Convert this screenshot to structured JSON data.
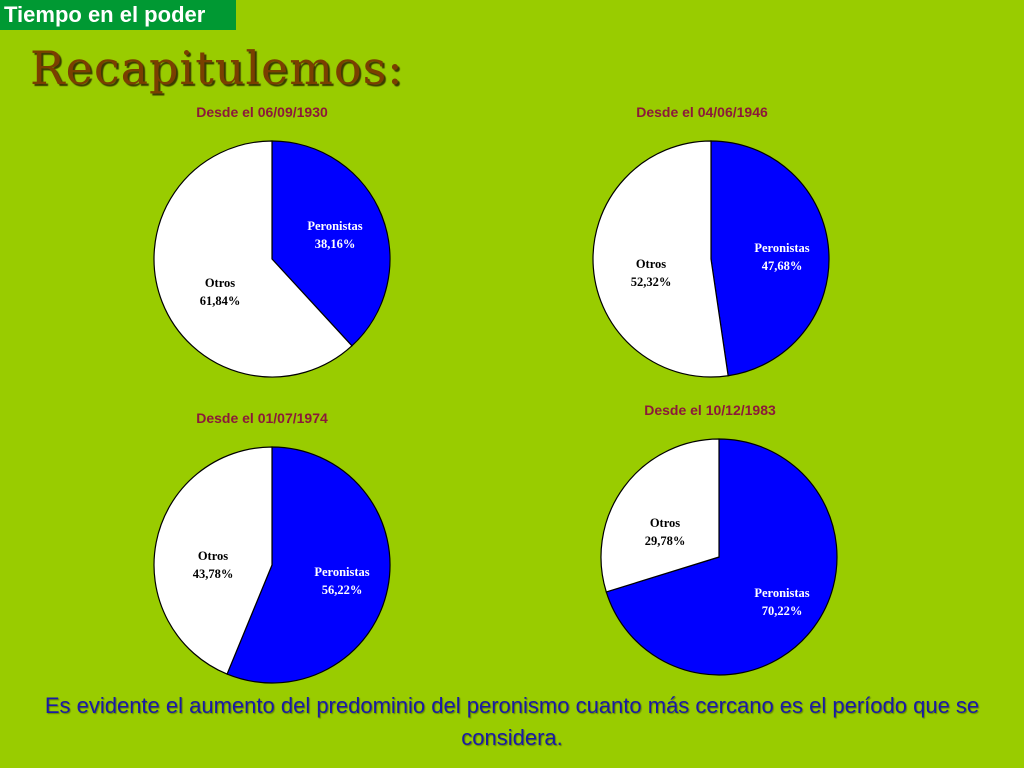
{
  "slide": {
    "tag": "Tiempo en el poder",
    "title": "Recapitulemos:",
    "footer": "Es evidente el aumento del predominio del peronismo cuanto más cercano es el período que se considera."
  },
  "colors": {
    "background": "#99cc00",
    "tag_background": "#009933",
    "tag_text": "#ffffff",
    "title_text": "#7a3f00",
    "chart_title_text": "#8b1a3a",
    "peronistas": "#0000ff",
    "otros": "#ffffff",
    "footer_text": "#1a1aa6"
  },
  "chart_data": [
    {
      "type": "pie",
      "title": "Desde el 06/09/1930",
      "slices": [
        {
          "label": "Peronistas",
          "value": 38.16,
          "display": "38,16%",
          "color": "#0000ff"
        },
        {
          "label": "Otros",
          "value": 61.84,
          "display": "61,84%",
          "color": "#ffffff"
        }
      ]
    },
    {
      "type": "pie",
      "title": "Desde el 04/06/1946",
      "slices": [
        {
          "label": "Peronistas",
          "value": 47.68,
          "display": "47,68%",
          "color": "#0000ff"
        },
        {
          "label": "Otros",
          "value": 52.32,
          "display": "52,32%",
          "color": "#ffffff"
        }
      ]
    },
    {
      "type": "pie",
      "title": "Desde el 01/07/1974",
      "slices": [
        {
          "label": "Peronistas",
          "value": 56.22,
          "display": "56,22%",
          "color": "#0000ff"
        },
        {
          "label": "Otros",
          "value": 43.78,
          "display": "43,78%",
          "color": "#ffffff"
        }
      ]
    },
    {
      "type": "pie",
      "title": "Desde el 10/12/1983",
      "slices": [
        {
          "label": "Peronistas",
          "value": 70.22,
          "display": "70,22%",
          "color": "#0000ff"
        },
        {
          "label": "Otros",
          "value": 29.78,
          "display": "29,78%",
          "color": "#ffffff"
        }
      ]
    }
  ]
}
